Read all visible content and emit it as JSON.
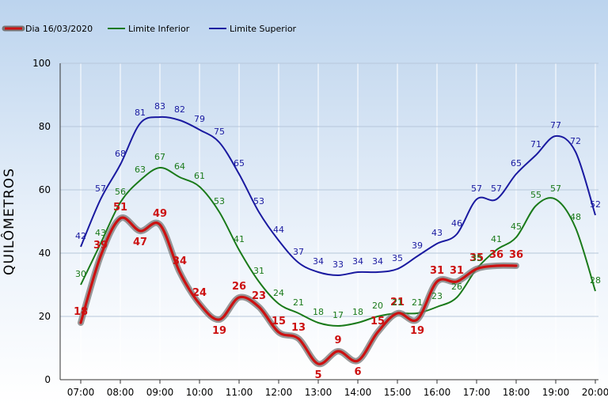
{
  "chart_data": {
    "type": "line",
    "title": "",
    "xlabel": "",
    "ylabel": "QUILÔMETROS",
    "ylim": [
      0,
      100
    ],
    "yticks": [
      0,
      20,
      40,
      60,
      80,
      100
    ],
    "xticks": [
      "07:00",
      "08:00",
      "09:00",
      "10:00",
      "11:00",
      "12:00",
      "13:00",
      "14:00",
      "15:00",
      "16:00",
      "17:00",
      "18:00",
      "19:00",
      "20:00"
    ],
    "grid": true,
    "legend_position": "top-left",
    "series": [
      {
        "name": "Dia 16/03/2020",
        "color": "#cc1111",
        "x": [
          "07:00",
          "07:30",
          "08:00",
          "08:30",
          "09:00",
          "09:30",
          "10:00",
          "10:30",
          "11:00",
          "11:30",
          "12:00",
          "12:30",
          "13:00",
          "13:30",
          "14:00",
          "14:30",
          "15:00",
          "15:30",
          "16:00",
          "16:30",
          "17:00",
          "17:30",
          "18:00"
        ],
        "values": [
          18,
          39,
          51,
          47,
          49,
          34,
          24,
          19,
          26,
          23,
          15,
          13,
          5,
          9,
          6,
          15,
          21,
          19,
          31,
          31,
          35,
          36,
          36
        ]
      },
      {
        "name": "Limite Inferior",
        "color": "#1a7a1a",
        "x": [
          "07:00",
          "07:30",
          "08:00",
          "08:30",
          "09:00",
          "09:30",
          "10:00",
          "10:30",
          "11:00",
          "11:30",
          "12:00",
          "12:30",
          "13:00",
          "13:30",
          "14:00",
          "14:30",
          "15:00",
          "15:30",
          "16:00",
          "16:30",
          "17:00",
          "17:30",
          "18:00",
          "18:30",
          "19:00",
          "19:30",
          "20:00"
        ],
        "values": [
          30,
          43,
          56,
          63,
          67,
          64,
          61,
          53,
          41,
          31,
          24,
          21,
          18,
          17,
          18,
          20,
          21,
          21,
          23,
          26,
          35,
          41,
          45,
          55,
          57,
          48,
          28
        ]
      },
      {
        "name": "Limite Superior",
        "color": "#1a1aa0",
        "x": [
          "07:00",
          "07:30",
          "08:00",
          "08:30",
          "09:00",
          "09:30",
          "10:00",
          "10:30",
          "11:00",
          "11:30",
          "12:00",
          "12:30",
          "13:00",
          "13:30",
          "14:00",
          "14:30",
          "15:00",
          "15:30",
          "16:00",
          "16:30",
          "17:00",
          "17:30",
          "18:00",
          "18:30",
          "19:00",
          "19:30",
          "20:00"
        ],
        "values": [
          42,
          57,
          68,
          81,
          83,
          82,
          79,
          75,
          65,
          53,
          44,
          37,
          34,
          33,
          34,
          34,
          35,
          39,
          43,
          46,
          57,
          57,
          65,
          71,
          77,
          72,
          52
        ]
      }
    ]
  }
}
